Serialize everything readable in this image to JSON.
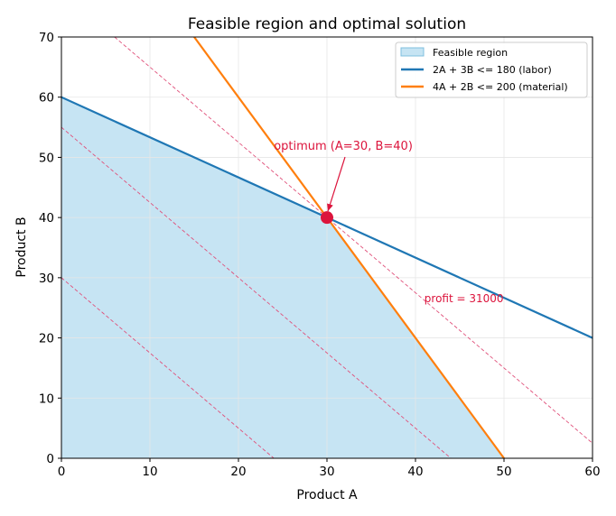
{
  "chart_data": {
    "type": "line",
    "title": "Feasible region and optimal solution",
    "xlabel": "Product A",
    "ylabel": "Product B",
    "xlim": [
      0,
      60
    ],
    "ylim": [
      0,
      70
    ],
    "xticks": [
      0,
      10,
      20,
      30,
      40,
      50,
      60
    ],
    "yticks": [
      0,
      10,
      20,
      30,
      40,
      50,
      60,
      70
    ],
    "grid": true,
    "legend_position": "top-right",
    "feasible_region": {
      "name": "Feasible region",
      "color": "#c6e4f3",
      "edge_color": "#7fbfdf",
      "vertices": [
        [
          0,
          0
        ],
        [
          0,
          60
        ],
        [
          30,
          40
        ],
        [
          50,
          0
        ]
      ]
    },
    "series": [
      {
        "name": "2A + 3B <= 180 (labor)",
        "color": "#1f77b4",
        "x": [
          0,
          60
        ],
        "y": [
          60,
          20
        ]
      },
      {
        "name": "4A + 2B <= 200 (material)",
        "color": "#ff7f0e",
        "x": [
          15,
          50
        ],
        "y": [
          70,
          0
        ]
      }
    ],
    "profit_lines": {
      "color": "#e0507a",
      "lines": [
        {
          "x": [
            0,
            24
          ],
          "y": [
            30,
            0
          ]
        },
        {
          "x": [
            0,
            44
          ],
          "y": [
            55,
            0
          ]
        },
        {
          "x": [
            6,
            60
          ],
          "y": [
            70,
            2.5
          ]
        }
      ],
      "label": {
        "text": "profit = 31000",
        "x": 41,
        "y": 26.5
      }
    },
    "optimum": {
      "x": 30,
      "y": 40,
      "color": "#dc143c",
      "annotation": {
        "text": "optimum (A=30, B=40)",
        "text_x": 24,
        "text_y": 52
      }
    },
    "colors": {
      "grid": "#e6e6e6",
      "axis": "#000000",
      "text": "#000000",
      "legend_border": "#cccccc"
    }
  }
}
